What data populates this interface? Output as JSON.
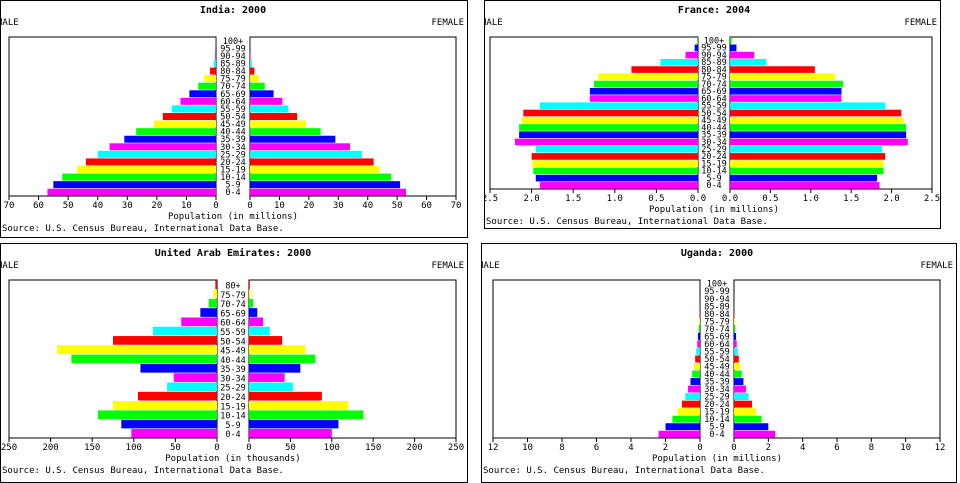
{
  "palette": [
    "#ff00ff",
    "#0000ff",
    "#00ff00",
    "#ffff00",
    "#ff0000",
    "#00ffff"
  ],
  "charts": [
    {
      "title": "India: 2000",
      "male_label": "MALE",
      "female_label": "FEMALE",
      "xlabel": "Population (in millions)",
      "source": "Source: U.S. Census Bureau, International Data Base.",
      "xmax": 70,
      "ticks": [
        {
          "v": 70,
          "label": "70"
        },
        {
          "v": 60,
          "label": "60"
        },
        {
          "v": 50,
          "label": "50"
        },
        {
          "v": 40,
          "label": "40"
        },
        {
          "v": 30,
          "label": "30"
        },
        {
          "v": 20,
          "label": "20"
        },
        {
          "v": 10,
          "label": "10"
        },
        {
          "v": 0,
          "label": "0"
        }
      ],
      "age_groups": [
        "0-4",
        "5-9",
        "10-14",
        "15-19",
        "20-24",
        "25-29",
        "30-34",
        "35-39",
        "40-44",
        "45-49",
        "50-54",
        "55-59",
        "60-64",
        "65-69",
        "70-74",
        "75-79",
        "80-84",
        "85-89",
        "90-94",
        "95-99",
        "100+"
      ],
      "male": [
        57,
        55,
        52,
        47,
        44,
        40,
        36,
        31,
        27,
        21,
        18,
        15,
        12,
        9,
        6,
        4,
        2,
        0.8,
        0.3,
        0.1,
        0.05
      ],
      "female": [
        53,
        51,
        48,
        44,
        42,
        38,
        34,
        29,
        24,
        19,
        16,
        13,
        11,
        8,
        5,
        3,
        1.5,
        0.6,
        0.2,
        0.1,
        0.05
      ]
    },
    {
      "title": "France: 2004",
      "male_label": "MALE",
      "female_label": "FEMALE",
      "xlabel": "Population (in millions)",
      "source": "Source: U.S. Census Bureau, International Data Base.",
      "xmax": 2.5,
      "ticks": [
        {
          "v": 2.5,
          "label": "2.5"
        },
        {
          "v": 2.0,
          "label": "2.0"
        },
        {
          "v": 1.5,
          "label": "1.5"
        },
        {
          "v": 1.0,
          "label": "1.0"
        },
        {
          "v": 0.5,
          "label": "0.5"
        },
        {
          "v": 0,
          "label": "0.0"
        }
      ],
      "age_groups": [
        "0-4",
        "5-9",
        "10-14",
        "15-19",
        "20-24",
        "25-29",
        "30-34",
        "35-39",
        "40-44",
        "45-49",
        "50-54",
        "55-59",
        "60-64",
        "65-69",
        "70-74",
        "75-79",
        "80-84",
        "85-89",
        "90-94",
        "95-99",
        "100+"
      ],
      "male": [
        1.9,
        1.95,
        1.98,
        1.99,
        2.0,
        1.95,
        2.2,
        2.15,
        2.15,
        2.12,
        2.1,
        1.9,
        1.3,
        1.3,
        1.25,
        1.2,
        0.8,
        0.45,
        0.15,
        0.04,
        0.01
      ],
      "female": [
        1.85,
        1.82,
        1.9,
        1.9,
        1.92,
        1.88,
        2.2,
        2.18,
        2.18,
        2.15,
        2.12,
        1.92,
        1.38,
        1.38,
        1.4,
        1.3,
        1.05,
        0.45,
        0.3,
        0.08,
        0.02
      ]
    },
    {
      "title": "United Arab Emirates: 2000",
      "male_label": "MALE",
      "female_label": "FEMALE",
      "xlabel": "Population (in thousands)",
      "source": "Source: U.S. Census Bureau, International Data Base.",
      "xmax": 250,
      "ticks": [
        {
          "v": 250,
          "label": "250"
        },
        {
          "v": 200,
          "label": "200"
        },
        {
          "v": 150,
          "label": "150"
        },
        {
          "v": 100,
          "label": "100"
        },
        {
          "v": 50,
          "label": "50"
        },
        {
          "v": 0,
          "label": "0"
        }
      ],
      "age_groups": [
        "0-4",
        "5-9",
        "10-14",
        "15-19",
        "20-24",
        "25-29",
        "30-34",
        "35-39",
        "40-44",
        "45-49",
        "50-54",
        "55-59",
        "60-64",
        "65-69",
        "70-74",
        "75-79",
        "80+"
      ],
      "male": [
        103,
        115,
        143,
        125,
        95,
        60,
        52,
        92,
        175,
        192,
        125,
        77,
        43,
        20,
        10,
        4,
        2
      ],
      "female": [
        100,
        108,
        138,
        120,
        88,
        53,
        43,
        62,
        80,
        68,
        40,
        25,
        17,
        10,
        5,
        2,
        1
      ]
    },
    {
      "title": "Uganda: 2000",
      "male_label": "MALE",
      "female_label": "FEMALE",
      "xlabel": "Population (in millions)",
      "source": "Source: U.S. Census Bureau, International Data Base.",
      "xmax": 12,
      "ticks": [
        {
          "v": 12,
          "label": "12"
        },
        {
          "v": 10,
          "label": "10"
        },
        {
          "v": 8,
          "label": "8"
        },
        {
          "v": 6,
          "label": "6"
        },
        {
          "v": 4,
          "label": "4"
        },
        {
          "v": 2,
          "label": "2"
        },
        {
          "v": 0,
          "label": "0"
        }
      ],
      "age_groups": [
        "0-4",
        "5-9",
        "10-14",
        "15-19",
        "20-24",
        "25-29",
        "30-34",
        "35-39",
        "40-44",
        "45-49",
        "50-54",
        "55-59",
        "60-64",
        "65-69",
        "70-74",
        "75-79",
        "80-84",
        "85-89",
        "90-94",
        "95-99",
        "100+"
      ],
      "male": [
        2.4,
        2.0,
        1.6,
        1.3,
        1.05,
        0.85,
        0.7,
        0.55,
        0.45,
        0.35,
        0.28,
        0.22,
        0.16,
        0.12,
        0.08,
        0.05,
        0.03,
        0.01,
        0.005,
        0.002,
        0.001
      ],
      "female": [
        2.4,
        2.0,
        1.6,
        1.3,
        1.05,
        0.85,
        0.7,
        0.55,
        0.45,
        0.35,
        0.28,
        0.22,
        0.16,
        0.12,
        0.08,
        0.05,
        0.03,
        0.01,
        0.005,
        0.002,
        0.001
      ]
    }
  ]
}
